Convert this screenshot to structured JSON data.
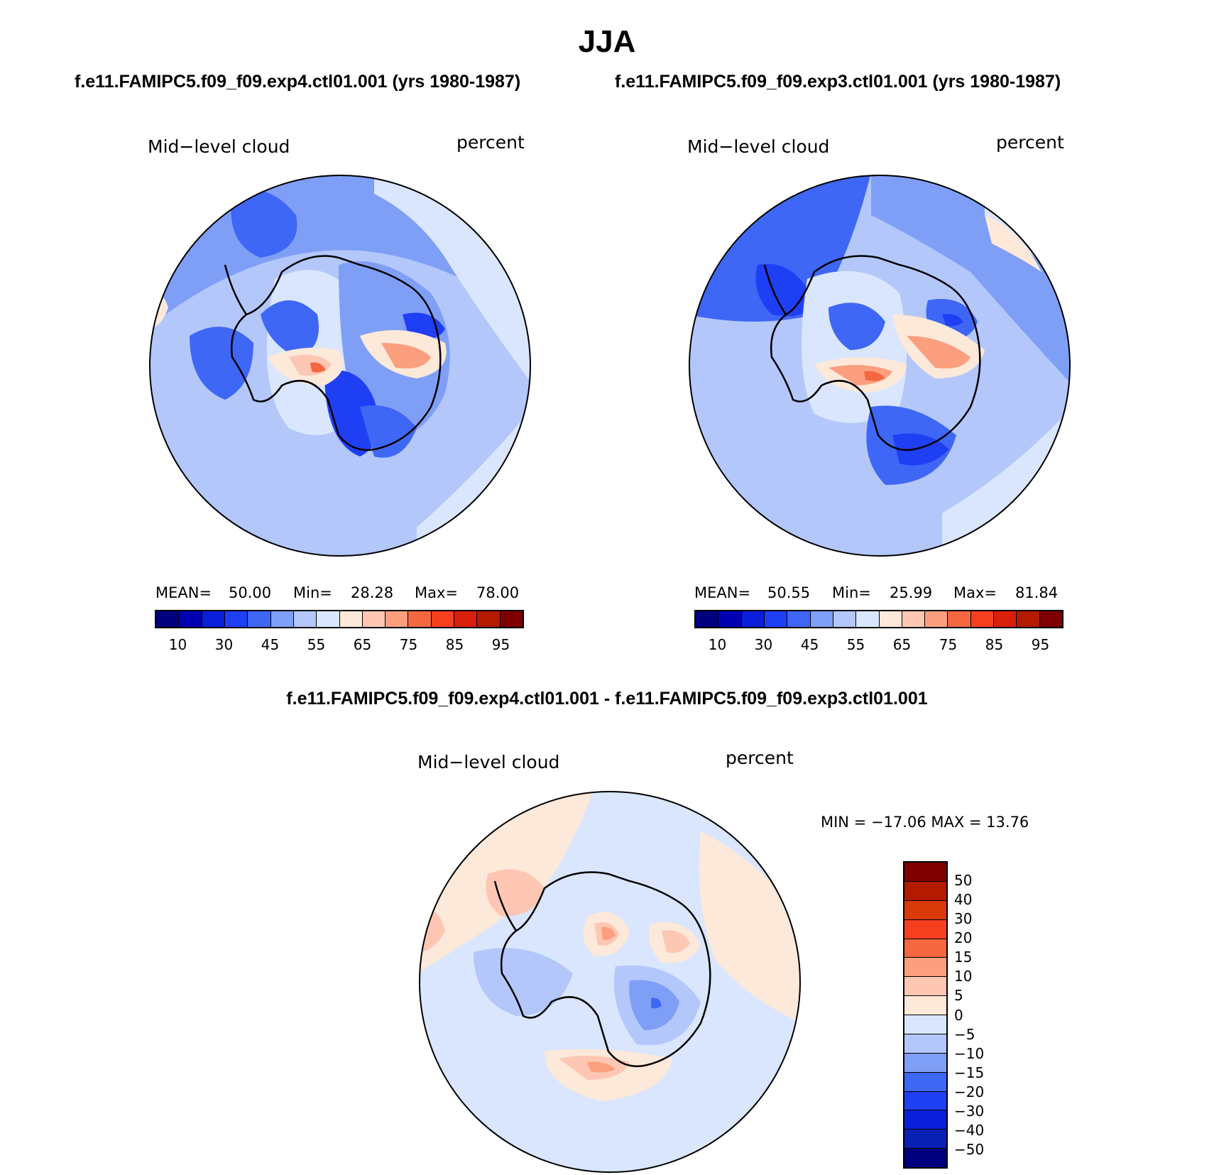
{
  "figure": {
    "season": "JJA",
    "left_title": "f.e11.FAMIPC5.f09_f09.exp4.ctl01.001 (yrs 1980-1987)",
    "right_title": "f.e11.FAMIPC5.f09_f09.exp3.ctl01.001 (yrs 1980-1987)",
    "diff_title": "f.e11.FAMIPC5.f09_f09.exp4.ctl01.001 - f.e11.FAMIPC5.f09_f09.exp3.ctl01.001"
  },
  "panels": {
    "left": {
      "variable": "Mid−level cloud",
      "units": "percent",
      "mean_label": "MEAN=",
      "mean_value": "50.00",
      "min_label": "Min=",
      "min_value": "28.28",
      "max_label": "Max=",
      "max_value": "78.00"
    },
    "right": {
      "variable": "Mid−level cloud",
      "units": "percent",
      "mean_label": "MEAN=",
      "mean_value": "50.55",
      "min_label": "Min=",
      "min_value": "25.99",
      "max_label": "Max=",
      "max_value": "81.84"
    },
    "diff": {
      "variable": "Mid−level cloud",
      "units": "percent",
      "minmax": "MIN = −17.06 MAX =   13.76"
    }
  },
  "colorbars": {
    "abs": {
      "colors": [
        "#00007f",
        "#0000b3",
        "#0a1fd9",
        "#1f3ff5",
        "#3f67f5",
        "#7f9ff7",
        "#b3c7fb",
        "#d9e6fd",
        "#fde9d9",
        "#fdc7b3",
        "#fb9f7f",
        "#f5673f",
        "#f53f1f",
        "#d91f0a",
        "#b31a00",
        "#7f0000"
      ],
      "tick_labels": [
        "10",
        "30",
        "45",
        "55",
        "65",
        "75",
        "85",
        "95"
      ]
    },
    "diff": {
      "colors": [
        "#00007f",
        "#0a1fb3",
        "#0a1fd9",
        "#1f3ff5",
        "#3f67f5",
        "#7f9ff7",
        "#b3c7fb",
        "#d9e6fd",
        "#fde9d9",
        "#fdc7b3",
        "#fb9f7f",
        "#f5673f",
        "#f53f1f",
        "#d93a0a",
        "#b31a00",
        "#7f0000"
      ],
      "tick_labels": [
        "50",
        "40",
        "30",
        "20",
        "15",
        "10",
        "5",
        "0",
        "−5",
        "−10",
        "−15",
        "−20",
        "−30",
        "−40",
        "−50"
      ]
    }
  }
}
